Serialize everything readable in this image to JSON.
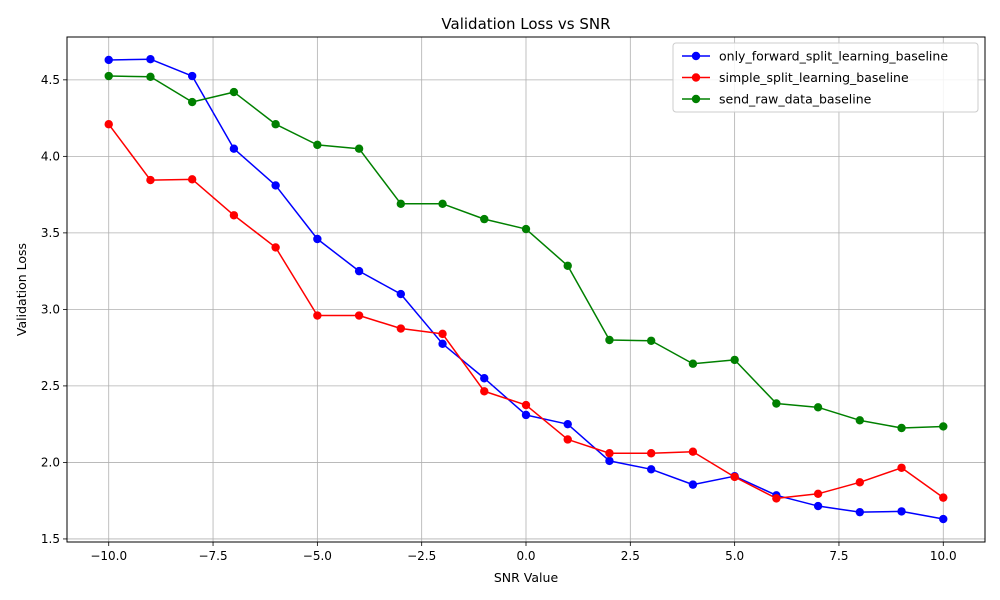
{
  "chart_data": {
    "type": "line",
    "title": "Validation Loss vs SNR",
    "xlabel": "SNR Value",
    "ylabel": "Validation Loss",
    "xlim": [
      -11,
      11
    ],
    "ylim": [
      1.48,
      4.78
    ],
    "grid": true,
    "legend_position": "top-right",
    "x_ticks": [
      -10.0,
      -7.5,
      -5.0,
      -2.5,
      0.0,
      2.5,
      5.0,
      7.5,
      10.0
    ],
    "x_tick_labels": [
      "−10.0",
      "−7.5",
      "−5.0",
      "−2.5",
      "0.0",
      "2.5",
      "5.0",
      "7.5",
      "10.0"
    ],
    "y_ticks": [
      1.5,
      2.0,
      2.5,
      3.0,
      3.5,
      4.0,
      4.5
    ],
    "y_tick_labels": [
      "1.5",
      "2.0",
      "2.5",
      "3.0",
      "3.5",
      "4.0",
      "4.5"
    ],
    "x": [
      -10,
      -9,
      -8,
      -7,
      -6,
      -5,
      -4,
      -3,
      -2,
      -1,
      0,
      1,
      2,
      3,
      4,
      5,
      6,
      7,
      8,
      9,
      10
    ],
    "series": [
      {
        "name": "only_forward_split_learning_baseline",
        "color": "#0000ff",
        "values": [
          4.63,
          4.635,
          4.525,
          4.05,
          3.81,
          3.46,
          3.25,
          3.1,
          2.775,
          2.55,
          2.31,
          2.25,
          2.01,
          1.955,
          1.855,
          1.91,
          1.785,
          1.715,
          1.675,
          1.68,
          1.63
        ]
      },
      {
        "name": "simple_split_learning_baseline",
        "color": "#ff0000",
        "values": [
          4.21,
          3.845,
          3.85,
          3.615,
          3.405,
          2.96,
          2.96,
          2.875,
          2.84,
          2.465,
          2.375,
          2.15,
          2.06,
          2.06,
          2.07,
          1.905,
          1.765,
          1.795,
          1.87,
          1.965,
          1.77
        ]
      },
      {
        "name": "send_raw_data_baseline",
        "color": "#008000",
        "values": [
          4.525,
          4.52,
          4.355,
          4.42,
          4.21,
          4.075,
          4.05,
          3.69,
          3.69,
          3.59,
          3.525,
          3.285,
          2.8,
          2.795,
          2.645,
          2.67,
          2.385,
          2.36,
          2.275,
          2.225,
          2.235
        ]
      }
    ]
  }
}
